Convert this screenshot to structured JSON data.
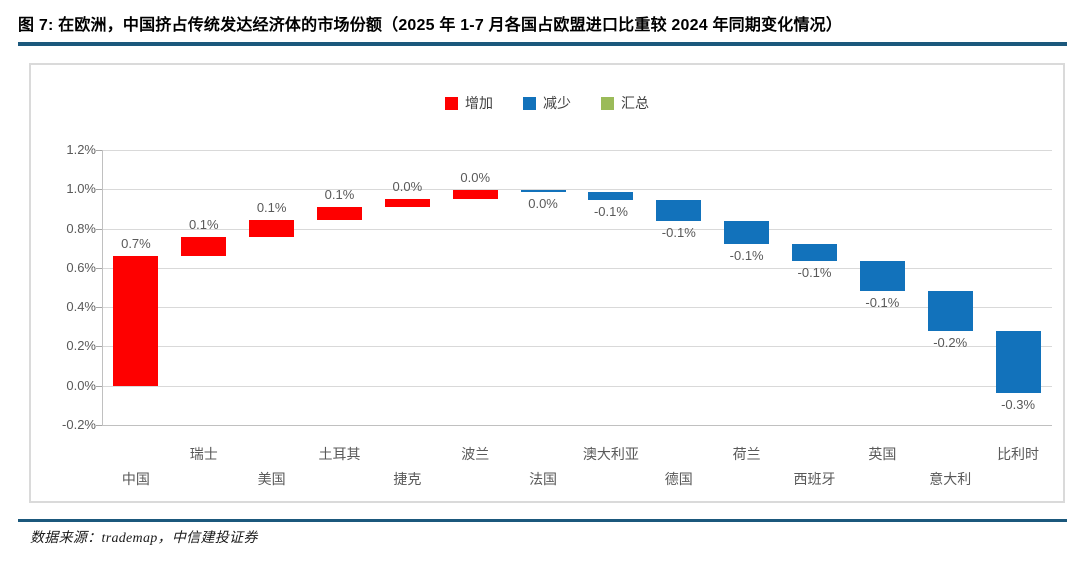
{
  "title": "图 7: 在欧洲，中国挤占传统发达经济体的市场份额（2025 年 1-7 月各国占欧盟进口比重较 2024 年同期变化情况）",
  "footer": {
    "source_text": "数据来源：trademap，中信建投证券"
  },
  "colors": {
    "increase": "#FE0000",
    "decrease": "#1272BB",
    "total": "#9BBB59",
    "rule": "#1B587C",
    "grid": "#D9D9D9",
    "text": "#595959"
  },
  "legend": [
    {
      "label": "增加",
      "type": "increase"
    },
    {
      "label": "减少",
      "type": "decrease"
    },
    {
      "label": "汇总",
      "type": "total"
    }
  ],
  "chart_data": {
    "type": "bar",
    "subtype": "waterfall",
    "title": "",
    "xlabel": "",
    "ylabel": "",
    "ylim": [
      -0.2,
      1.2
    ],
    "ytick_step": 0.2,
    "yticks": [
      1.2,
      1.0,
      0.8,
      0.6,
      0.4,
      0.2,
      0.0,
      -0.2
    ],
    "ytick_labels": [
      "1.2%",
      "1.0%",
      "0.8%",
      "0.6%",
      "0.4%",
      "0.2%",
      "0.0%",
      "-0.2%"
    ],
    "grid": true,
    "legend_position": "top-center",
    "categories": [
      "中国",
      "瑞士",
      "美国",
      "土耳其",
      "捷克",
      "波兰",
      "法国",
      "澳大利亚",
      "德国",
      "荷兰",
      "西班牙",
      "英国",
      "意大利",
      "比利时"
    ],
    "bars": [
      {
        "category": "中国",
        "label": "0.7%",
        "value": 0.662,
        "start": 0.0,
        "end": 0.662,
        "type": "increase"
      },
      {
        "category": "瑞士",
        "label": "0.1%",
        "value": 0.095,
        "start": 0.662,
        "end": 0.757,
        "type": "increase"
      },
      {
        "category": "美国",
        "label": "0.1%",
        "value": 0.085,
        "start": 0.757,
        "end": 0.842,
        "type": "increase"
      },
      {
        "category": "土耳其",
        "label": "0.1%",
        "value": 0.07,
        "start": 0.842,
        "end": 0.912,
        "type": "increase"
      },
      {
        "category": "捷克",
        "label": "0.0%",
        "value": 0.041,
        "start": 0.912,
        "end": 0.953,
        "type": "increase"
      },
      {
        "category": "波兰",
        "label": "0.0%",
        "value": 0.045,
        "start": 0.953,
        "end": 0.998,
        "type": "increase"
      },
      {
        "category": "法国",
        "label": "0.0%",
        "value": -0.01,
        "start": 0.998,
        "end": 0.988,
        "type": "decrease"
      },
      {
        "category": "澳大利亚",
        "label": "-0.1%",
        "value": -0.045,
        "start": 0.988,
        "end": 0.943,
        "type": "decrease"
      },
      {
        "category": "德国",
        "label": "-0.1%",
        "value": -0.105,
        "start": 0.943,
        "end": 0.838,
        "type": "decrease"
      },
      {
        "category": "荷兰",
        "label": "-0.1%",
        "value": -0.115,
        "start": 0.838,
        "end": 0.723,
        "type": "decrease"
      },
      {
        "category": "西班牙",
        "label": "-0.1%",
        "value": -0.09,
        "start": 0.723,
        "end": 0.633,
        "type": "decrease"
      },
      {
        "category": "英国",
        "label": "-0.1%",
        "value": -0.15,
        "start": 0.633,
        "end": 0.483,
        "type": "decrease"
      },
      {
        "category": "意大利",
        "label": "-0.2%",
        "value": -0.203,
        "start": 0.483,
        "end": 0.28,
        "type": "decrease"
      },
      {
        "category": "比利时",
        "label": "-0.3%",
        "value": -0.318,
        "start": 0.28,
        "end": -0.038,
        "type": "decrease"
      }
    ]
  }
}
